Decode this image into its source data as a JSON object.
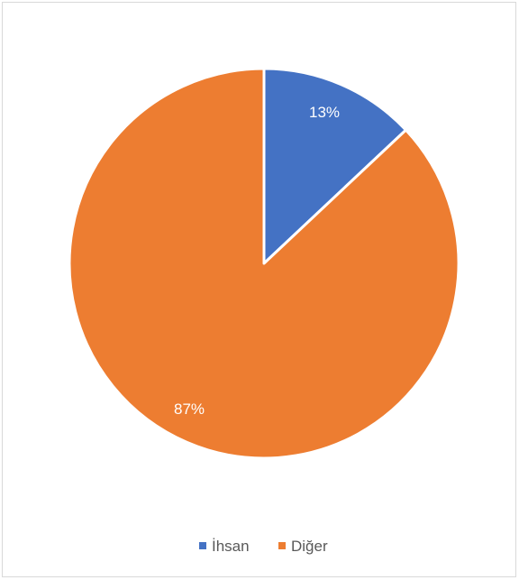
{
  "chart_data": {
    "type": "pie",
    "slices": [
      {
        "name": "İhsan",
        "value": 13,
        "label": "13%",
        "color": "#4472c4"
      },
      {
        "name": "Diğer",
        "value": 87,
        "label": "87%",
        "color": "#ed7d31"
      }
    ],
    "legend": {
      "position": "bottom"
    }
  }
}
